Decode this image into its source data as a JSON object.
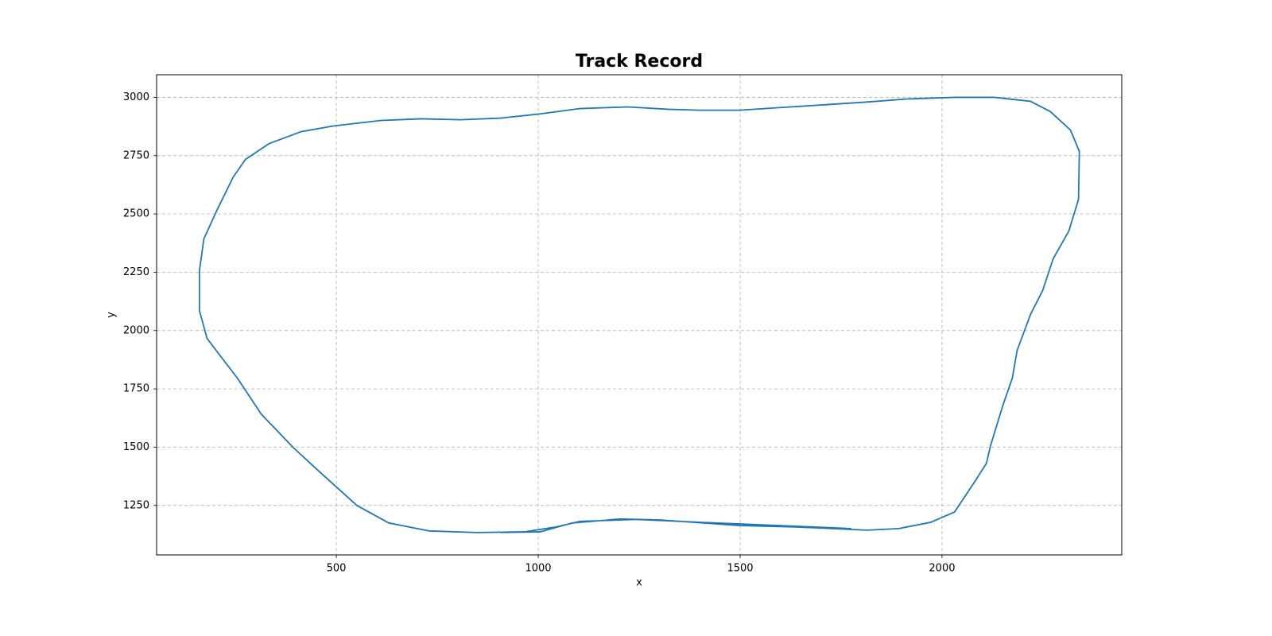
{
  "chart_data": {
    "type": "line",
    "title": "Track Record",
    "x_label": "x",
    "y_label": "y",
    "xlim": [
      55,
      2445
    ],
    "ylim": [
      1038,
      3097
    ],
    "xticks": [
      500,
      1000,
      1500,
      2000
    ],
    "yticks": [
      1250,
      1500,
      1750,
      2000,
      2250,
      2500,
      2750,
      3000
    ],
    "grid": true,
    "series": [
      {
        "color": "#1f77b4",
        "x": [
          908,
          1005,
          1084,
          1203,
          1301,
          1499,
          1637,
          1775,
          1814,
          1893,
          1972,
          2031,
          2081,
          2110,
          2120,
          2150,
          2174,
          2186,
          2219,
          2249,
          2275,
          2314,
          2338,
          2340,
          2318,
          2268,
          2219,
          2130,
          2031,
          1913,
          1814,
          1716,
          1597,
          1499,
          1400,
          1321,
          1222,
          1104,
          999,
          907,
          808,
          710,
          611,
          492,
          413,
          334,
          275,
          245,
          206,
          172,
          161,
          161,
          180,
          255,
          314,
          393,
          453,
          551,
          630,
          729,
          848,
          966,
          1045,
          1104,
          1242,
          1439,
          1637,
          1775
        ],
        "y": [
          1134,
          1137,
          1175,
          1192,
          1188,
          1164,
          1158,
          1147,
          1144,
          1151,
          1178,
          1222,
          1352,
          1431,
          1506,
          1676,
          1796,
          1915,
          2069,
          2171,
          2307,
          2427,
          2563,
          2768,
          2860,
          2939,
          2983,
          3000,
          3000,
          2993,
          2980,
          2969,
          2956,
          2945,
          2945,
          2949,
          2959,
          2952,
          2928,
          2911,
          2904,
          2908,
          2901,
          2877,
          2853,
          2802,
          2734,
          2659,
          2522,
          2393,
          2256,
          2086,
          1966,
          1796,
          1642,
          1499,
          1403,
          1250,
          1175,
          1141,
          1134,
          1137,
          1158,
          1182,
          1190,
          1175,
          1161,
          1151
        ]
      }
    ]
  }
}
